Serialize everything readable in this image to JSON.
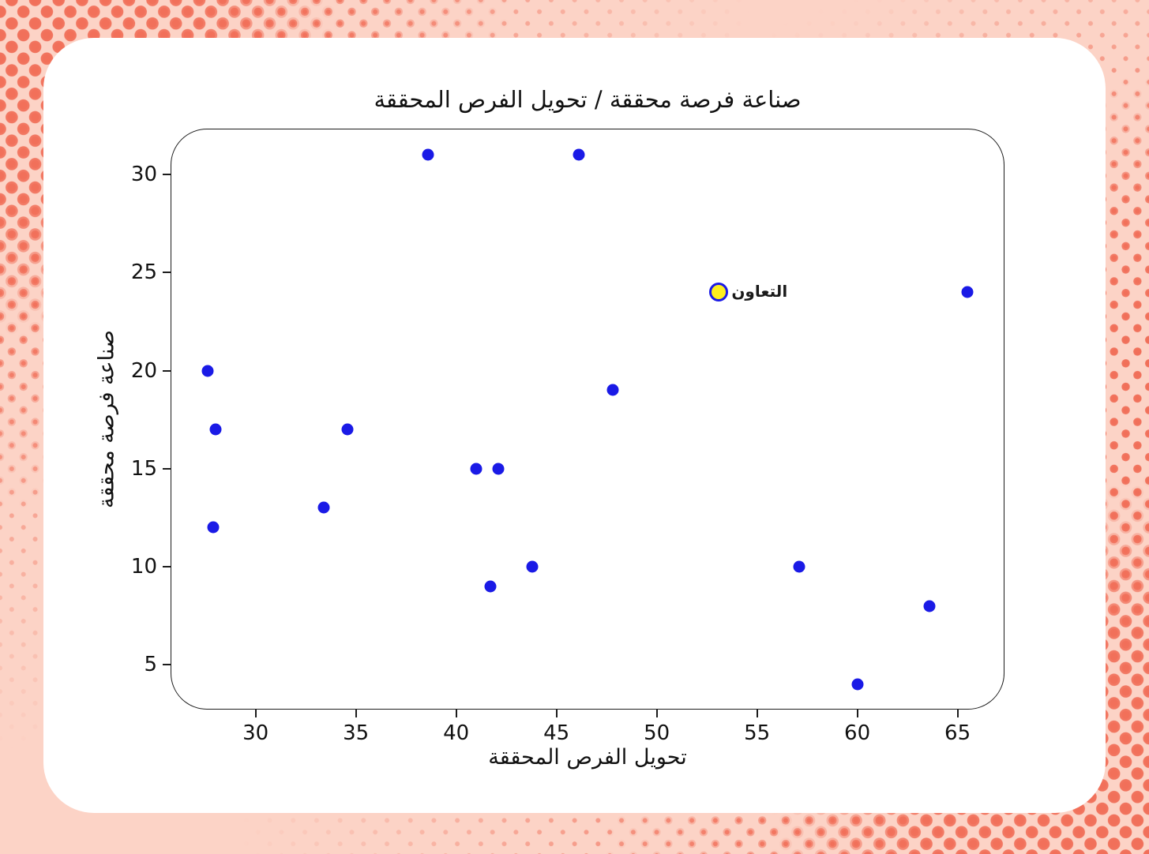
{
  "page": {
    "colors": {
      "background_base": "#fcd3c6",
      "halftone_dot": "#f1705a",
      "card": "#ffffff",
      "point_blue": "#1a1ae6",
      "highlight_yellow": "#fdef1f",
      "axis_line": "#1c1c1c",
      "text": "#111111"
    }
  },
  "chart_data": {
    "type": "scatter",
    "title": "صناعة فرصة محققة  /  تحويل الفرص المحققة",
    "xlabel": "تحويل الفرص المحققة",
    "ylabel": "صناعة فرصة محققة",
    "xlim": [
      25.8,
      67.3
    ],
    "ylim": [
      2.75,
      32.3
    ],
    "x_ticks": [
      30,
      35,
      40,
      45,
      50,
      55,
      60,
      65
    ],
    "y_ticks": [
      5,
      10,
      15,
      20,
      25,
      30
    ],
    "grid": false,
    "legend": false,
    "series": [
      {
        "name": "blue-points",
        "color": "#1a1ae6",
        "marker_radius": 7.5,
        "points": [
          [
            38.6,
            31
          ],
          [
            46.1,
            31
          ],
          [
            65.5,
            24
          ],
          [
            27.6,
            20
          ],
          [
            47.8,
            19
          ],
          [
            28.0,
            17
          ],
          [
            34.6,
            17
          ],
          [
            41.0,
            15
          ],
          [
            42.1,
            15
          ],
          [
            33.4,
            13
          ],
          [
            27.9,
            12
          ],
          [
            43.8,
            10
          ],
          [
            57.1,
            10
          ],
          [
            41.7,
            9
          ],
          [
            63.6,
            8
          ],
          [
            60.0,
            4
          ]
        ]
      },
      {
        "name": "highlighted-point",
        "fill": "#fdef1f",
        "stroke": "#1a1ae6",
        "stroke_width": 3,
        "marker_radius": 12,
        "points": [
          [
            53.1,
            24
          ]
        ]
      }
    ],
    "annotation": {
      "text": "التعاون",
      "x": 53.1,
      "y": 24
    }
  }
}
